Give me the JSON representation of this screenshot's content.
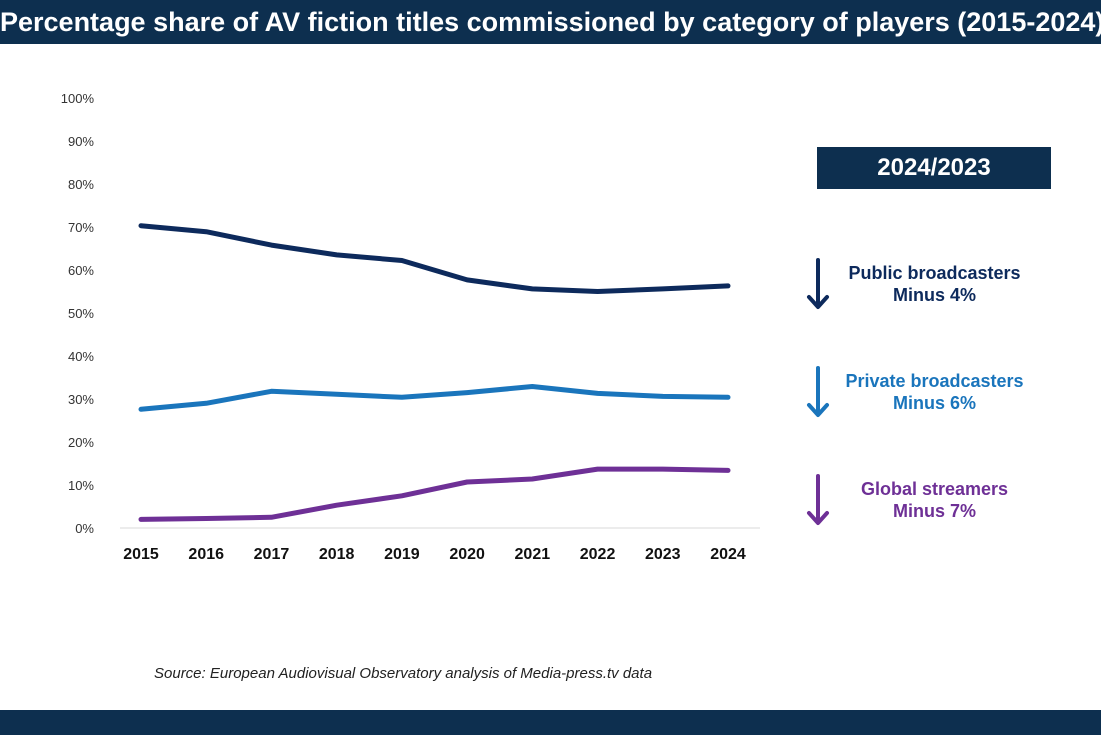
{
  "header": {
    "title": "Percentage share of AV fiction titles commissioned by category of players (2015-2024)"
  },
  "comparison": {
    "label": "2024/2023",
    "items": [
      {
        "name": "Public broadcasters",
        "change": "Minus 4%",
        "color": "#0d2a5c",
        "icon": "arrow-down-icon"
      },
      {
        "name": "Private broadcasters",
        "change": "Minus 6%",
        "color": "#1a75bc",
        "icon": "arrow-down-icon"
      },
      {
        "name": "Global streamers",
        "change": "Minus 7%",
        "color": "#6e3096",
        "icon": "arrow-down-icon"
      }
    ]
  },
  "source": "Source: European Audiovisual Observatory analysis of Media-press.tv data",
  "colors": {
    "header_bg": "#0d2f4f",
    "footer_bg": "#0d2f4f"
  },
  "chart_data": {
    "type": "line",
    "x": [
      "2015",
      "2016",
      "2017",
      "2018",
      "2019",
      "2020",
      "2021",
      "2022",
      "2023",
      "2024"
    ],
    "y_ticks": [
      "0%",
      "10%",
      "20%",
      "30%",
      "40%",
      "50%",
      "60%",
      "70%",
      "80%",
      "90%",
      "100%"
    ],
    "ylim": [
      0,
      100
    ],
    "grid": false,
    "series": [
      {
        "id": "public",
        "color": "#0d2a5c",
        "values": [
          70.3,
          68.9,
          65.8,
          63.5,
          62.2,
          57.7,
          55.6,
          55.0,
          55.6,
          56.3
        ]
      },
      {
        "id": "private",
        "color": "#1a75bc",
        "values": [
          27.6,
          29.0,
          31.8,
          31.1,
          30.4,
          31.5,
          32.9,
          31.3,
          30.6,
          30.4
        ]
      },
      {
        "id": "streamers",
        "color": "#6e3096",
        "values": [
          2.0,
          2.2,
          2.5,
          5.3,
          7.5,
          10.7,
          11.4,
          13.7,
          13.7,
          13.4
        ]
      }
    ]
  }
}
